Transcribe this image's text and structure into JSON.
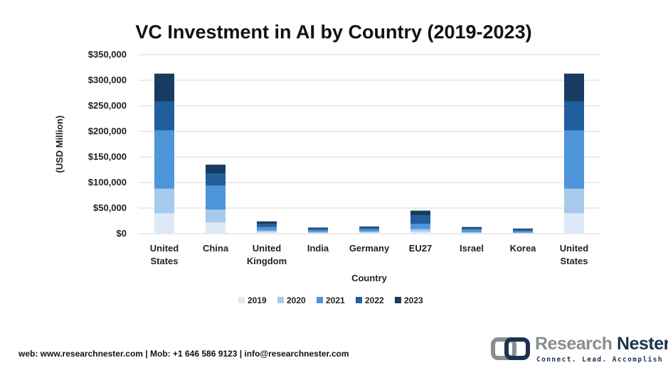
{
  "chart_data": {
    "type": "bar",
    "stacked": true,
    "title": "VC Investment in AI by Country (2019-2023)",
    "xlabel": "Country",
    "ylabel": "(USD Million)",
    "ylim": [
      0,
      350000
    ],
    "yticks": [
      "$0",
      "$50,000",
      "$100,000",
      "$150,000",
      "$200,000",
      "$250,000",
      "$300,000",
      "$350,000"
    ],
    "ytick_values": [
      0,
      50000,
      100000,
      150000,
      200000,
      250000,
      300000,
      350000
    ],
    "grid": true,
    "legend_position": "bottom",
    "categories": [
      [
        "United",
        "States"
      ],
      [
        "China"
      ],
      [
        "United",
        "Kingdom"
      ],
      [
        "India"
      ],
      [
        "Germany"
      ],
      [
        "EU27"
      ],
      [
        "Israel"
      ],
      [
        "Korea"
      ],
      [
        "United",
        "States"
      ]
    ],
    "series": [
      {
        "name": "2019",
        "color": "#dde9f6",
        "values": [
          40000,
          22000,
          3000,
          1000,
          2000,
          4000,
          1000,
          1000,
          40000
        ]
      },
      {
        "name": "2020",
        "color": "#a7c9eb",
        "values": [
          48000,
          25000,
          3000,
          2000,
          2000,
          5000,
          2000,
          1000,
          48000
        ]
      },
      {
        "name": "2021",
        "color": "#4e95d9",
        "values": [
          114000,
          47000,
          7000,
          4000,
          5000,
          10000,
          5000,
          3000,
          114000
        ]
      },
      {
        "name": "2022",
        "color": "#215e9c",
        "values": [
          57000,
          24000,
          6000,
          3000,
          3000,
          17000,
          3000,
          3000,
          57000
        ]
      },
      {
        "name": "2023",
        "color": "#183b61",
        "values": [
          54000,
          17000,
          5000,
          2000,
          2000,
          9000,
          2000,
          2000,
          54000
        ]
      }
    ]
  },
  "footer": "web: www.researchnester.com | Mob: +1 646 586 9123 | info@researchnester.com",
  "logo": {
    "name_part1": "Research",
    "name_part2": "Nester",
    "tagline": "Connect. Lead. Accomplish"
  }
}
